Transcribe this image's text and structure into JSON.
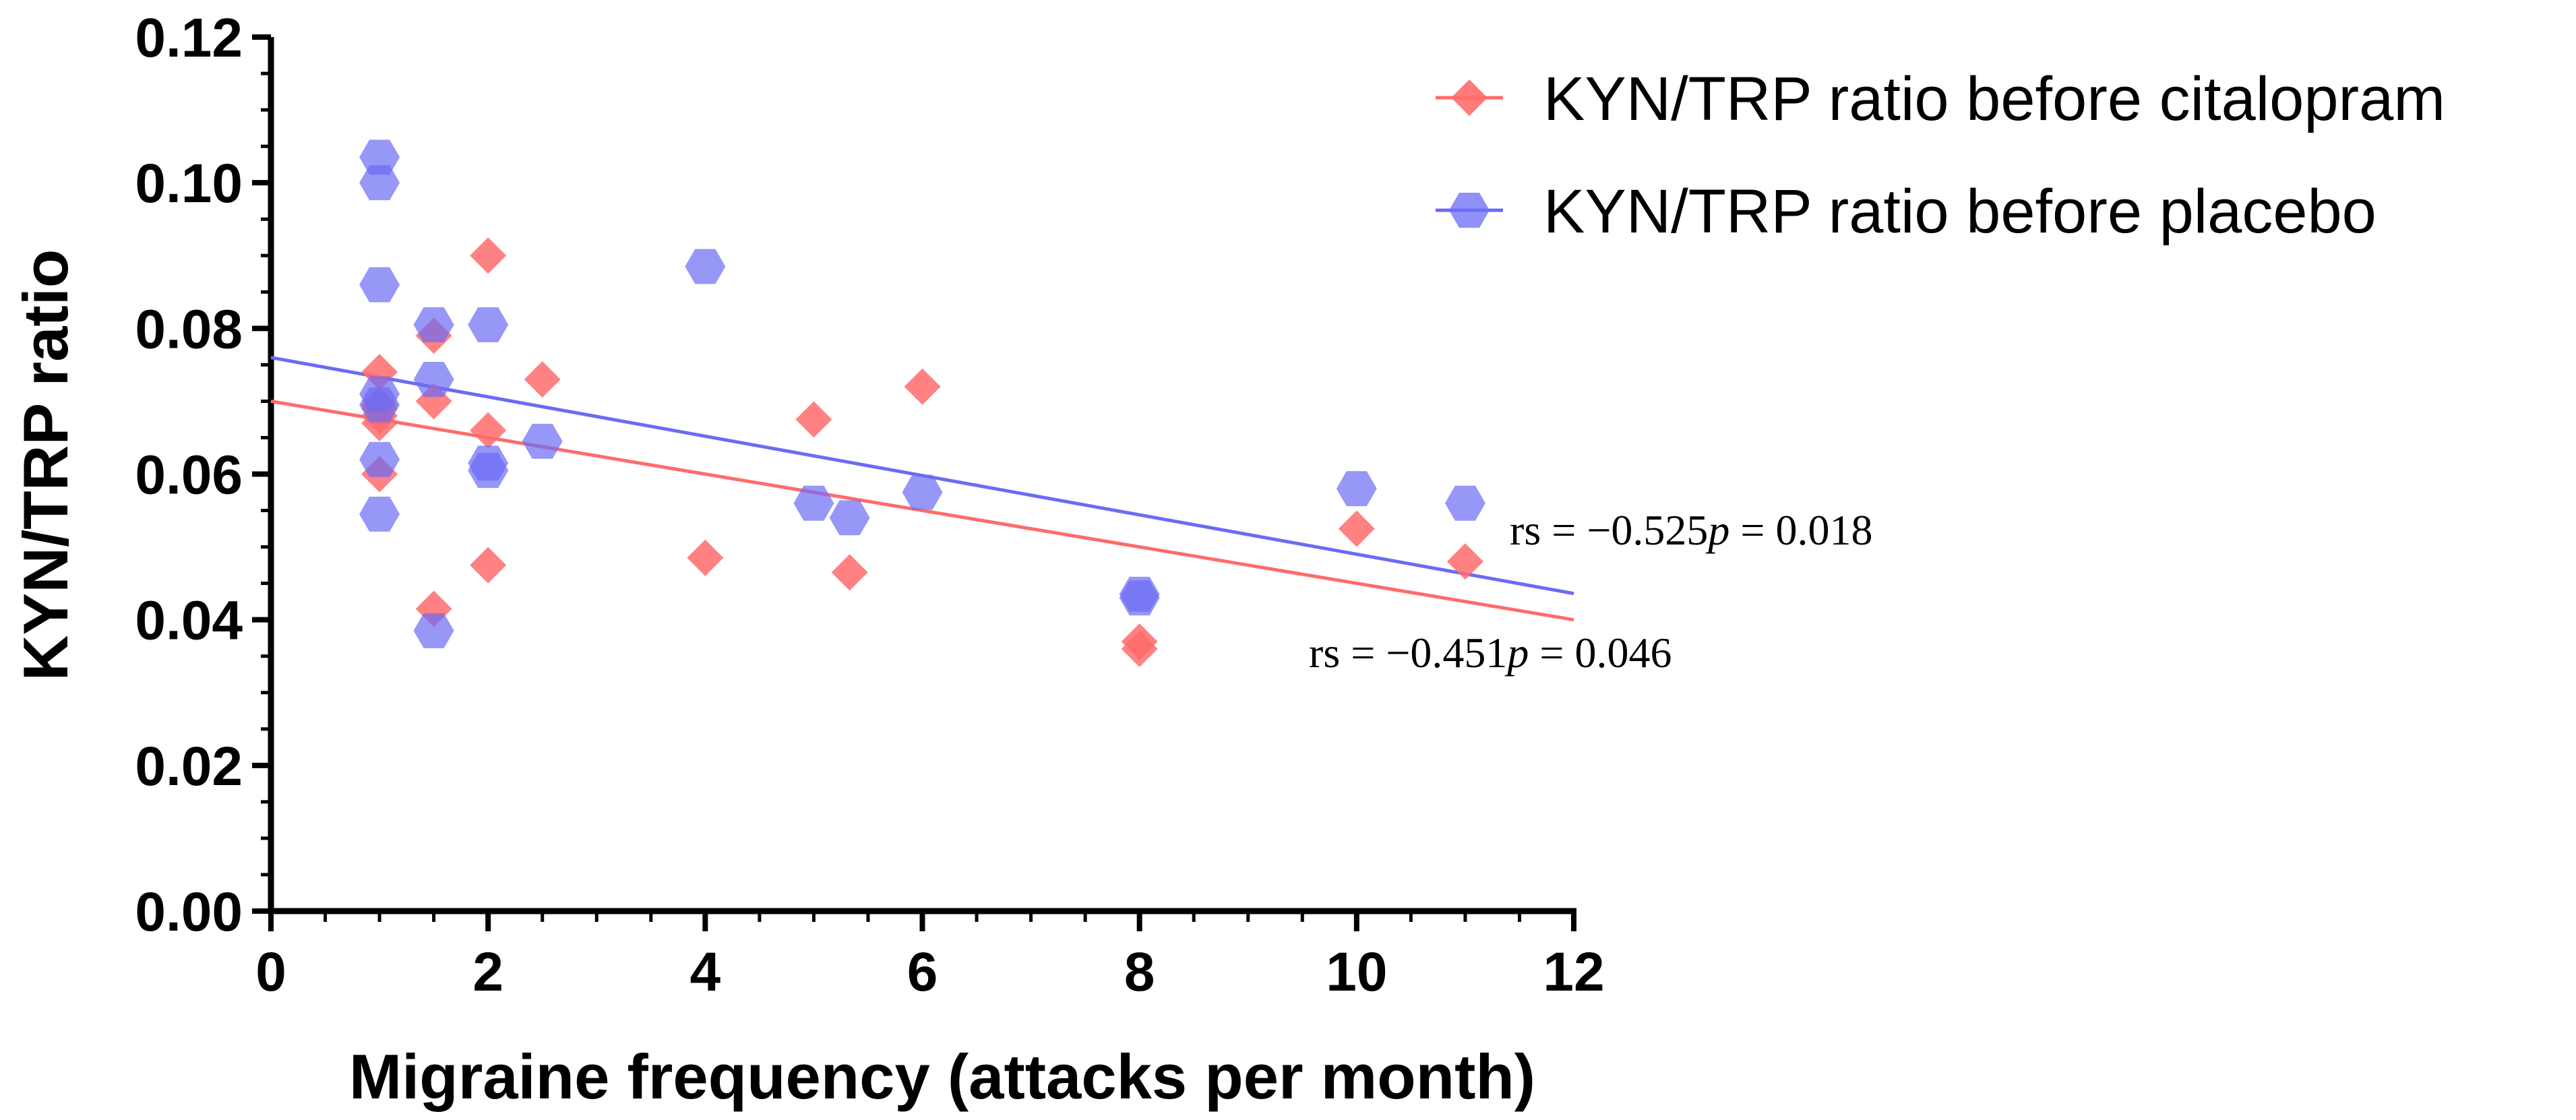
{
  "chart_data": {
    "type": "scatter",
    "title": "",
    "xlabel": "Migraine frequency (attacks per month)",
    "ylabel": "KYN/TRP ratio",
    "xlim": [
      0,
      12
    ],
    "ylim": [
      0,
      0.12
    ],
    "x_ticks": [
      0,
      2,
      4,
      6,
      8,
      10,
      12
    ],
    "x_tick_labels": [
      "0",
      "2",
      "4",
      "6",
      "8",
      "10",
      "12"
    ],
    "y_ticks": [
      0,
      0.02,
      0.04,
      0.06,
      0.08,
      0.1,
      0.12
    ],
    "y_tick_labels": [
      "0.00",
      "0.02",
      "0.04",
      "0.06",
      "0.08",
      "0.10",
      "0.12"
    ],
    "legend_position": "top-right",
    "series": [
      {
        "name": "KYN/TRP ratio before citalopram",
        "color": "#ff6b6b",
        "marker": "diamond",
        "points": [
          [
            1,
            0.074
          ],
          [
            1,
            0.0695
          ],
          [
            1,
            0.069
          ],
          [
            1,
            0.068
          ],
          [
            1,
            0.067
          ],
          [
            1,
            0.06
          ],
          [
            1.5,
            0.079
          ],
          [
            1.5,
            0.07
          ],
          [
            1.5,
            0.0415
          ],
          [
            2,
            0.09
          ],
          [
            2,
            0.066
          ],
          [
            2,
            0.0475
          ],
          [
            2.5,
            0.073
          ],
          [
            4,
            0.0485
          ],
          [
            5,
            0.0675
          ],
          [
            5.33,
            0.0465
          ],
          [
            6,
            0.072
          ],
          [
            8,
            0.037
          ],
          [
            8,
            0.036
          ],
          [
            10,
            0.0525
          ],
          [
            11,
            0.048
          ]
        ],
        "trend": {
          "intercept": 0.07,
          "slope": -0.0025
        },
        "annotation": {
          "rs_label": "rs = −0.451",
          "p_symbol": "p",
          "p_label": " = 0.046"
        }
      },
      {
        "name": "KYN/TRP ratio before placebo",
        "color": "#6b6bf5",
        "marker": "hexagon",
        "points": [
          [
            1,
            0.1035
          ],
          [
            1,
            0.1
          ],
          [
            1,
            0.086
          ],
          [
            1,
            0.071
          ],
          [
            1,
            0.0695
          ],
          [
            1,
            0.062
          ],
          [
            1,
            0.0545
          ],
          [
            1.5,
            0.0805
          ],
          [
            1.5,
            0.073
          ],
          [
            1.5,
            0.0385
          ],
          [
            2,
            0.0805
          ],
          [
            2,
            0.0615
          ],
          [
            2,
            0.0605
          ],
          [
            2.5,
            0.0645
          ],
          [
            4,
            0.0885
          ],
          [
            5,
            0.056
          ],
          [
            5.33,
            0.054
          ],
          [
            6,
            0.0575
          ],
          [
            8,
            0.0435
          ],
          [
            8,
            0.043
          ],
          [
            10,
            0.058
          ],
          [
            11,
            0.056
          ]
        ],
        "trend": {
          "intercept": 0.076,
          "slope": -0.0027
        },
        "annotation": {
          "rs_label": "rs = −0.525",
          "p_symbol": "p",
          "p_label": " = 0.018"
        }
      }
    ]
  }
}
